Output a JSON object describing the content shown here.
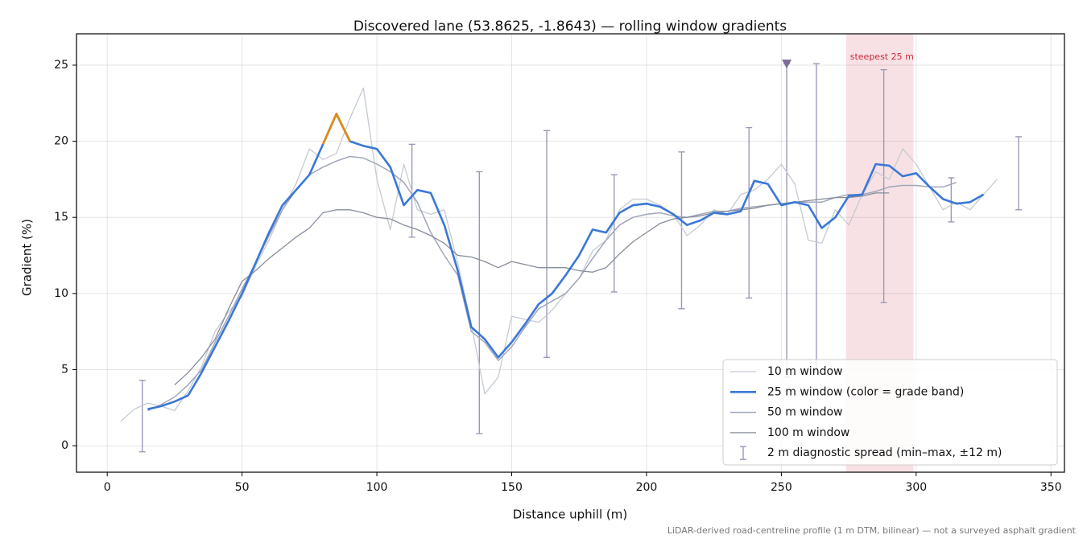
{
  "chart_data": {
    "type": "line",
    "title": "Discovered lane (53.8625, -1.8643) — rolling window gradients",
    "x_label": "Distance uphill (m)",
    "y_label": "Gradient (%)",
    "footnote": "LiDAR-derived road-centreline profile (1 m DTM, bilinear) — not a surveyed asphalt gradient",
    "xlim": [
      -11.4,
      355
    ],
    "ylim": [
      -1.74,
      27.06
    ],
    "xticks": [
      0,
      50,
      100,
      150,
      200,
      250,
      300,
      350
    ],
    "yticks": [
      0,
      5,
      10,
      15,
      20,
      25
    ],
    "grid": true,
    "legend": "lower right",
    "x": [
      5,
      10,
      15,
      20,
      25,
      30,
      35,
      40,
      45,
      50,
      55,
      60,
      65,
      70,
      75,
      80,
      85,
      90,
      95,
      100,
      105,
      110,
      115,
      120,
      125,
      130,
      135,
      140,
      145,
      150,
      155,
      160,
      165,
      170,
      175,
      180,
      185,
      190,
      195,
      200,
      205,
      210,
      215,
      220,
      225,
      230,
      235,
      240,
      245,
      250,
      255,
      260,
      265,
      270,
      275,
      280,
      285,
      290,
      295,
      300,
      305,
      310,
      315,
      320,
      325,
      330,
      335
    ],
    "series": [
      {
        "name": "10 m window",
        "color": "#c5cad3",
        "width": 1.3,
        "values": [
          1.6,
          2.4,
          2.8,
          2.6,
          2.3,
          3.6,
          5.2,
          7.5,
          8.8,
          9.8,
          11.8,
          13.5,
          15.5,
          17.2,
          19.5,
          18.8,
          19.2,
          21.5,
          23.5,
          17.5,
          14.2,
          18.5,
          15.5,
          15.2,
          15.5,
          12,
          8,
          3.4,
          4.5,
          8.5,
          8.3,
          8.1,
          8.9,
          10,
          11,
          12.8,
          13.5,
          15.5,
          16.2,
          16.2,
          15.8,
          15.2,
          13.8,
          14.5,
          15.5,
          15.2,
          16.5,
          16.8,
          17.5,
          18.5,
          17.2,
          13.5,
          13.3,
          15.5,
          14.5,
          16.5,
          18,
          17.5,
          19.5,
          18.5,
          17,
          15.5,
          16,
          15.5,
          16.5,
          17.5,
          null
        ]
      },
      {
        "name": "50 m window",
        "color": "#a0a6bb",
        "width": 1.5,
        "values": [
          null,
          null,
          2.3,
          2.7,
          3.2,
          4,
          5,
          6.8,
          8.5,
          10.3,
          12,
          13.8,
          15.5,
          16.8,
          17.8,
          18.3,
          18.7,
          19,
          18.9,
          18.5,
          18,
          17.3,
          16,
          14,
          12.5,
          11.2,
          7.5,
          6.8,
          5.6,
          6.5,
          7.8,
          9,
          9.5,
          10,
          11,
          12.3,
          13.5,
          14.5,
          15,
          15.2,
          15.3,
          15.1,
          15,
          15.2,
          15.4,
          15.4,
          15.6,
          15.7,
          15.8,
          15.9,
          16,
          16,
          16,
          16.3,
          16.5,
          16.5,
          16.7,
          17,
          17.1,
          17.1,
          17,
          17,
          17.3,
          null,
          null,
          null,
          null
        ]
      },
      {
        "name": "100 m window",
        "color": "#868d9b",
        "width": 1.3,
        "values": [
          null,
          null,
          null,
          null,
          4,
          4.8,
          5.8,
          7,
          9,
          10.8,
          11.5,
          12.3,
          13,
          13.7,
          14.3,
          15.3,
          15.5,
          15.5,
          15.3,
          15,
          14.9,
          14.5,
          14.2,
          13.8,
          13.3,
          12.5,
          12.4,
          12.1,
          11.7,
          12.1,
          11.9,
          11.7,
          11.7,
          11.7,
          11.5,
          11.4,
          11.7,
          12.6,
          13.4,
          14,
          14.6,
          14.9,
          15,
          15.1,
          15.3,
          15.4,
          15.5,
          15.6,
          15.8,
          15.9,
          16,
          16.1,
          16.2,
          16.3,
          16.3,
          16.4,
          16.6,
          16.6,
          null,
          null,
          null,
          null,
          null,
          null,
          null,
          null,
          null
        ]
      },
      {
        "name": "25 m window (color = grade band)",
        "color": "#3a78d6",
        "width": 2.6,
        "band_range": [
          80,
          90
        ],
        "band_color": "#e08a0c",
        "values": [
          null,
          null,
          2.4,
          2.6,
          2.9,
          3.3,
          4.8,
          6.5,
          8.2,
          10,
          12,
          14,
          15.8,
          16.8,
          17.8,
          19.8,
          21.8,
          20,
          19.7,
          19.5,
          18.3,
          15.8,
          16.8,
          16.6,
          14.5,
          11.5,
          7.8,
          7,
          5.8,
          6.8,
          8,
          9.3,
          10,
          11.2,
          12.5,
          14.2,
          14,
          15.3,
          15.8,
          15.9,
          15.7,
          15.2,
          14.5,
          14.8,
          15.3,
          15.2,
          15.4,
          17.4,
          17.2,
          15.8,
          16,
          15.8,
          14.3,
          15,
          16.4,
          16.5,
          18.5,
          18.4,
          17.7,
          17.9,
          17,
          16.2,
          15.9,
          16,
          16.5,
          null,
          null
        ]
      }
    ],
    "errorbars": {
      "name": "2 m diagnostic spread (min–max, ±12 m)",
      "color": "#9a9ab8",
      "x": [
        13,
        113,
        138,
        163,
        188,
        213,
        238,
        252,
        263,
        288,
        313,
        338
      ],
      "low": [
        -0.4,
        13.7,
        0.8,
        5.8,
        10.1,
        9,
        9.7,
        4.5,
        4.8,
        9.4,
        14.7,
        15.5
      ],
      "high": [
        4.3,
        19.8,
        18,
        20.7,
        17.8,
        19.3,
        20.9,
        25.1,
        25.1,
        24.7,
        17.6,
        20.3
      ]
    },
    "marker": {
      "x": 252,
      "y": 25.1,
      "color": "#7a6b9a"
    },
    "highlight": {
      "label": "steepest 25 m",
      "x_range": [
        274,
        299
      ],
      "color": "#f0c9ce",
      "label_color": "#cc2a3a"
    }
  }
}
